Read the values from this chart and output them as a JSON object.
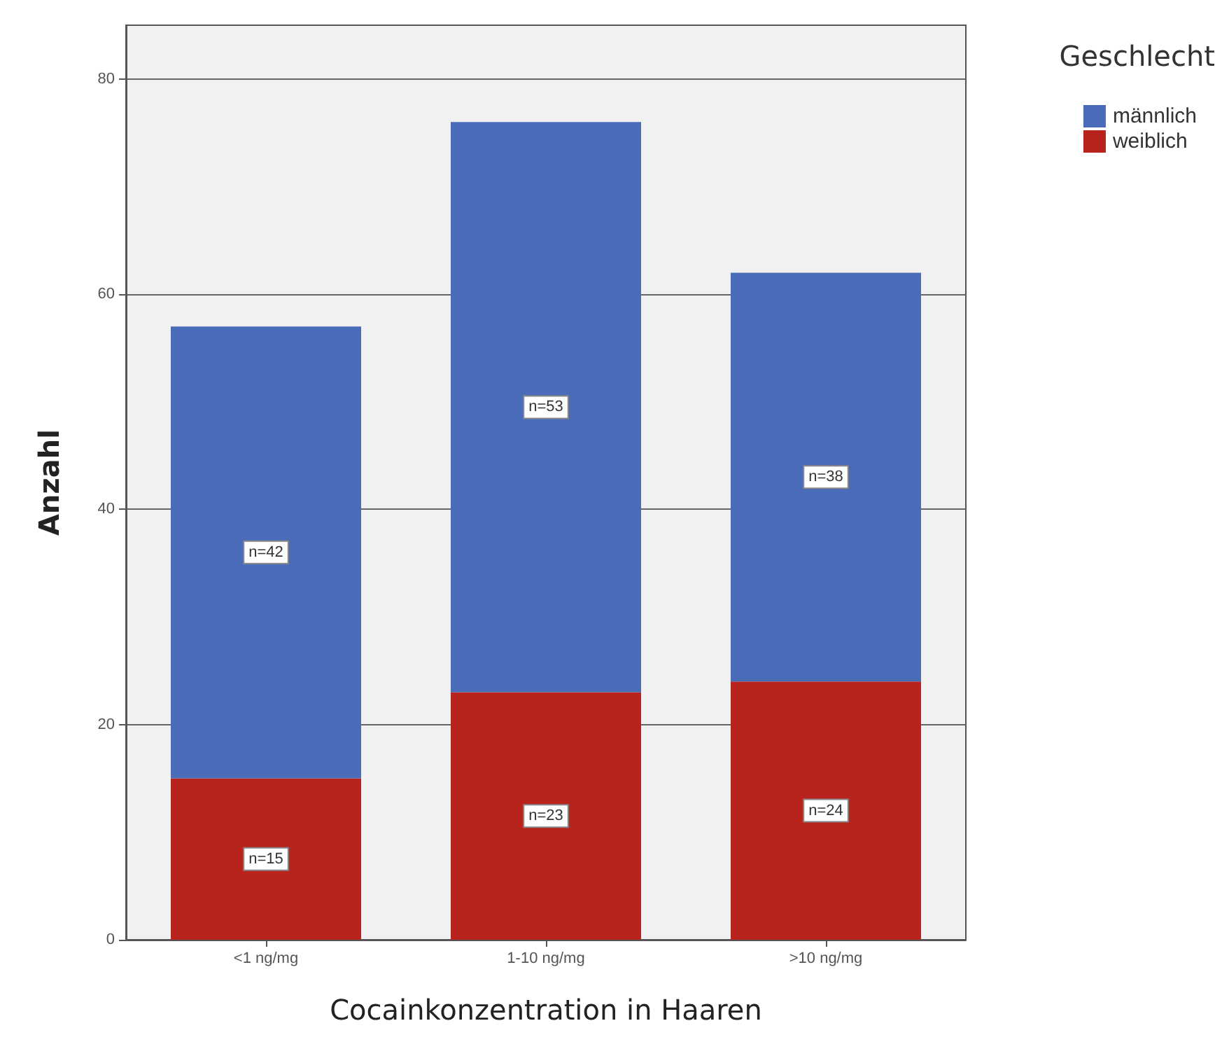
{
  "chart_data": {
    "type": "bar",
    "stacked": true,
    "xlabel": "Cocainkonzentration in Haaren",
    "ylabel": "Anzahl",
    "legend_title": "Geschlecht",
    "categories": [
      "<1 ng/mg",
      "1-10 ng/mg",
      ">10 ng/mg"
    ],
    "series": [
      {
        "name": "weiblich",
        "color": "#b8231e",
        "values": [
          15,
          23,
          24
        ],
        "value_labels": [
          "n=15",
          "n=23",
          "n=24"
        ]
      },
      {
        "name": "männlich",
        "color": "#4a6cb8",
        "values": [
          42,
          53,
          38
        ],
        "value_labels": [
          "n=42",
          "n=53",
          "n=38"
        ]
      }
    ],
    "ylim": [
      0,
      85
    ],
    "yticks": [
      0,
      20,
      40,
      60,
      80
    ],
    "grid": "y",
    "legend": "top right"
  }
}
